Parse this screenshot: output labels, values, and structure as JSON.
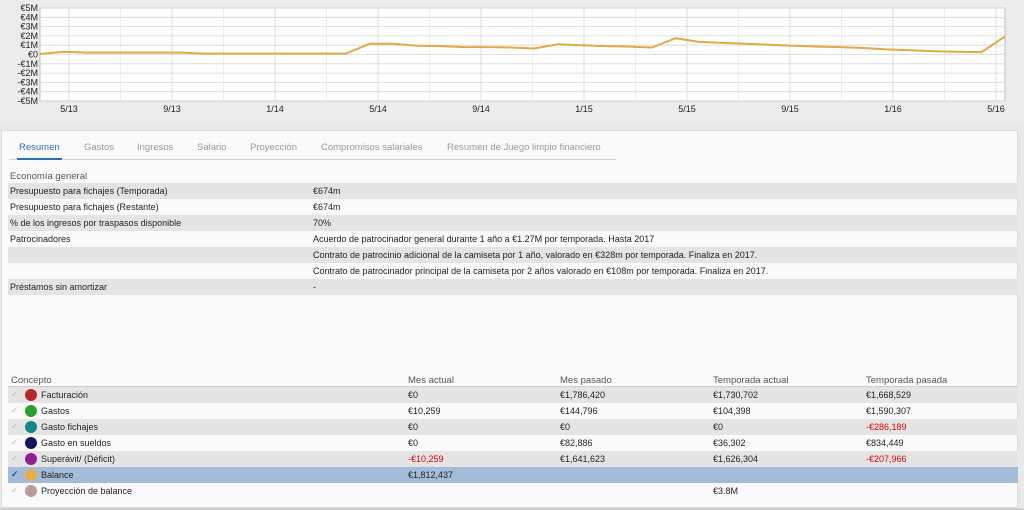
{
  "chart_data": {
    "type": "line",
    "y_ticks": [
      "€5M",
      "€4M",
      "€3M",
      "€2M",
      "€1M",
      "€0",
      "-€1M",
      "-€2M",
      "-€3M",
      "-€4M",
      "-€5M"
    ],
    "x_ticks": [
      "5/13",
      "9/13",
      "1/14",
      "5/14",
      "9/14",
      "1/15",
      "5/15",
      "9/15",
      "1/16",
      "5/16"
    ],
    "ylim": [
      -5,
      5
    ],
    "grid": true,
    "series_color": "#e2a84a",
    "values": [
      0.05,
      0.3,
      0.2,
      0.2,
      0.2,
      0.2,
      0.2,
      0.1,
      0.1,
      0.1,
      0.1,
      0.1,
      0.1,
      0.1,
      1.15,
      1.15,
      0.95,
      0.9,
      0.8,
      0.8,
      0.75,
      0.65,
      1.1,
      1.0,
      0.9,
      0.85,
      0.75,
      1.75,
      1.35,
      1.25,
      1.15,
      1.05,
      0.95,
      0.85,
      0.8,
      0.7,
      0.55,
      0.45,
      0.35,
      0.3,
      0.25,
      1.95
    ]
  },
  "tabs": [
    {
      "label": "Resumen",
      "active": true
    },
    {
      "label": "Gastos"
    },
    {
      "label": "Ingresos"
    },
    {
      "label": "Salario"
    },
    {
      "label": "Proyección"
    },
    {
      "label": "Compromisos salariales"
    },
    {
      "label": "Resumen de Juego limpio financiero"
    }
  ],
  "economy": {
    "title": "Economía general",
    "rows": [
      {
        "label": "Presupuesto para fichajes (Temporada)",
        "value": "€674m"
      },
      {
        "label": "Presupuesto para fichajes (Restante)",
        "value": "€674m"
      },
      {
        "label": "% de los ingresos por traspasos disponible",
        "value": "70%"
      },
      {
        "label": "Patrocinadores",
        "value": "Acuerdo de patrocinador general durante 1 año a €1.27M por temporada. Hasta 2017"
      },
      {
        "label": "",
        "value": "Contrato de patrocinio adicional de la camiseta por 1 año, valorado en €328m por temporada. Finaliza en 2017."
      },
      {
        "label": "",
        "value": "Contrato de patrocinador principal de la camiseta por 2 años valorado en €108m por temporada. Finaliza en 2017."
      },
      {
        "label": "Préstamos sin amortizar",
        "value": "-"
      }
    ]
  },
  "concepts": {
    "headers": {
      "concept": "Concepto",
      "current_month": "Mes actual",
      "last_month": "Mes pasado",
      "current_season": "Temporada actual",
      "last_season": "Temporada pasada"
    },
    "rows": [
      {
        "name": "Facturación",
        "color": "#b5272a",
        "current_month": "€0",
        "last_month": "€1,786,420",
        "current_season": "€1,730,702",
        "last_season": "€1,668,529"
      },
      {
        "name": "Gastos",
        "color": "#2e9e33",
        "current_month": "€10,259",
        "last_month": "€144,796",
        "current_season": "€104,398",
        "last_season": "€1,590,307"
      },
      {
        "name": "Gasto fichajes",
        "color": "#16858a",
        "current_month": "€0",
        "last_month": "€0",
        "current_season": "€0",
        "last_season": "-€286,189"
      },
      {
        "name": "Gasto en sueldos",
        "color": "#13155e",
        "current_month": "€0",
        "last_month": "€82,886",
        "current_season": "€36,302",
        "last_season": "€834,449"
      },
      {
        "name": "Superávit/ (Déficit)",
        "color": "#8e1f93",
        "current_month": "-€10,259",
        "last_month": "€1,641,623",
        "current_season": "€1,626,304",
        "last_season": "-€207,966"
      },
      {
        "name": "Balance",
        "color": "#e8ad45",
        "current_month": "€1,812,437",
        "last_month": "",
        "current_season": "",
        "last_season": "",
        "selected": true
      },
      {
        "name": "Proyección de balance",
        "color": "#b89b9b",
        "current_month": "",
        "last_month": "",
        "current_season": "€3.8M",
        "last_season": ""
      }
    ]
  }
}
